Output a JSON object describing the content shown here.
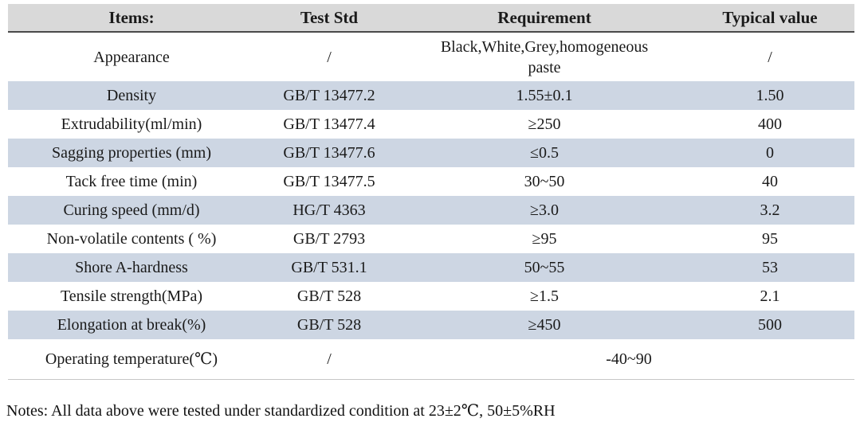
{
  "table": {
    "headers": {
      "items": "Items:",
      "test_std": "Test Std",
      "requirement": "Requirement",
      "typical_value": "Typical value"
    },
    "rows": [
      {
        "item": "Appearance",
        "std": "/",
        "req": "Black,White,Grey,homogeneous paste",
        "typ": "/"
      },
      {
        "item": "Density",
        "std": "GB/T 13477.2",
        "req": "1.55±0.1",
        "typ": "1.50"
      },
      {
        "item": "Extrudability(ml/min)",
        "std": "GB/T 13477.4",
        "req": "≥250",
        "typ": "400"
      },
      {
        "item": "Sagging properties (mm)",
        "std": "GB/T 13477.6",
        "req": "≤0.5",
        "typ": "0"
      },
      {
        "item": "Tack free time (min)",
        "std": "GB/T 13477.5",
        "req": "30~50",
        "typ": "40"
      },
      {
        "item": "Curing speed (mm/d)",
        "std": "HG/T 4363",
        "req": "≥3.0",
        "typ": "3.2"
      },
      {
        "item": "Non-volatile contents ( %)",
        "std": "GB/T 2793",
        "req": "≥95",
        "typ": "95"
      },
      {
        "item": "Shore A-hardness",
        "std": "GB/T 531.1",
        "req": "50~55",
        "typ": "53"
      },
      {
        "item": "Tensile strength(MPa)",
        "std": "GB/T 528",
        "req": "≥1.5",
        "typ": "2.1"
      },
      {
        "item": "Elongation at break(%)",
        "std": "GB/T 528",
        "req": "≥450",
        "typ": "500"
      },
      {
        "item": "Operating temperature(℃)",
        "std": "/",
        "req": "-40~90"
      }
    ]
  },
  "notes": "Notes: All data above were tested under standardized condition at 23±2℃, 50±5%RH",
  "colors": {
    "header_bg": "#d9d9d9",
    "stripe_bg": "#cdd6e3",
    "header_rule": "#4a4a4a",
    "bottom_rule": "#c6c6c6"
  }
}
